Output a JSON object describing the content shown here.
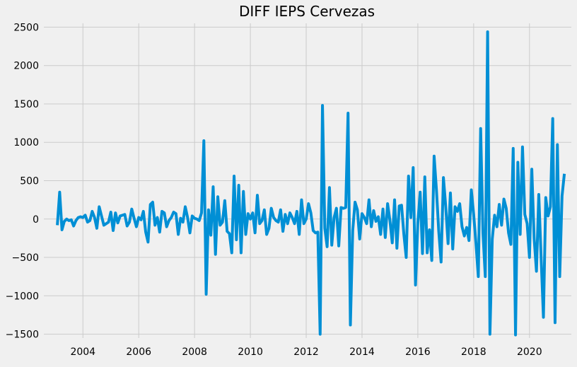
{
  "chart_data": {
    "type": "line",
    "title": "DIFF IEPS Cervezas",
    "xlabel": "",
    "ylabel": "",
    "grid": true,
    "legend": "none",
    "xlim": [
      2002.6,
      2021.5
    ],
    "ylim": [
      -1550,
      2550
    ],
    "xticks": [
      2004,
      2006,
      2008,
      2010,
      2012,
      2014,
      2016,
      2018,
      2020
    ],
    "yticks": [
      -1500,
      -1000,
      -500,
      0,
      500,
      1000,
      1500,
      2000,
      2500
    ],
    "line_color": "#008fd5",
    "series": [
      {
        "x_start": 2003.0833,
        "x_step": 0.0833333,
        "values": [
          -80,
          350,
          -140,
          -30,
          0,
          -20,
          -10,
          -90,
          -20,
          20,
          30,
          20,
          50,
          -40,
          -20,
          100,
          20,
          -120,
          160,
          40,
          -80,
          -60,
          -40,
          90,
          -150,
          80,
          -50,
          40,
          50,
          60,
          -90,
          -40,
          130,
          10,
          -100,
          20,
          -10,
          100,
          -170,
          -300,
          190,
          220,
          -80,
          20,
          -170,
          100,
          80,
          -100,
          -20,
          20,
          90,
          70,
          -200,
          10,
          -40,
          160,
          20,
          -180,
          40,
          10,
          0,
          -20,
          80,
          1020,
          -980,
          120,
          -210,
          420,
          -460,
          290,
          -80,
          -40,
          240,
          -160,
          -190,
          -440,
          560,
          -270,
          440,
          -440,
          360,
          -200,
          70,
          0,
          80,
          -180,
          310,
          -60,
          -20,
          120,
          -200,
          -120,
          140,
          20,
          -20,
          -40,
          120,
          -160,
          60,
          -60,
          80,
          20,
          -60,
          100,
          -200,
          250,
          -60,
          0,
          200,
          80,
          -150,
          -180,
          -170,
          -1500,
          1480,
          -120,
          -360,
          410,
          -340,
          20,
          140,
          -350,
          150,
          140,
          150,
          1380,
          -1380,
          -150,
          220,
          120,
          -260,
          70,
          20,
          -60,
          250,
          -100,
          110,
          -30,
          30,
          -200,
          130,
          -240,
          200,
          -20,
          -310,
          250,
          -380,
          170,
          180,
          -200,
          -500,
          560,
          20,
          670,
          -860,
          -50,
          350,
          -450,
          550,
          -440,
          -140,
          -540,
          820,
          380,
          -160,
          -560,
          540,
          160,
          -320,
          340,
          -390,
          160,
          100,
          200,
          -100,
          -220,
          -110,
          -280,
          380,
          60,
          -320,
          -750,
          1180,
          -180,
          -750,
          2440,
          -1500,
          -260,
          50,
          -100,
          190,
          -80,
          260,
          140,
          -180,
          -330,
          920,
          -1510,
          740,
          -200,
          940,
          60,
          -60,
          -500,
          650,
          -250,
          -680,
          320,
          -500,
          -1280,
          280,
          40,
          160,
          1310,
          -1350,
          970,
          -750,
          300,
          590
        ]
      }
    ]
  }
}
